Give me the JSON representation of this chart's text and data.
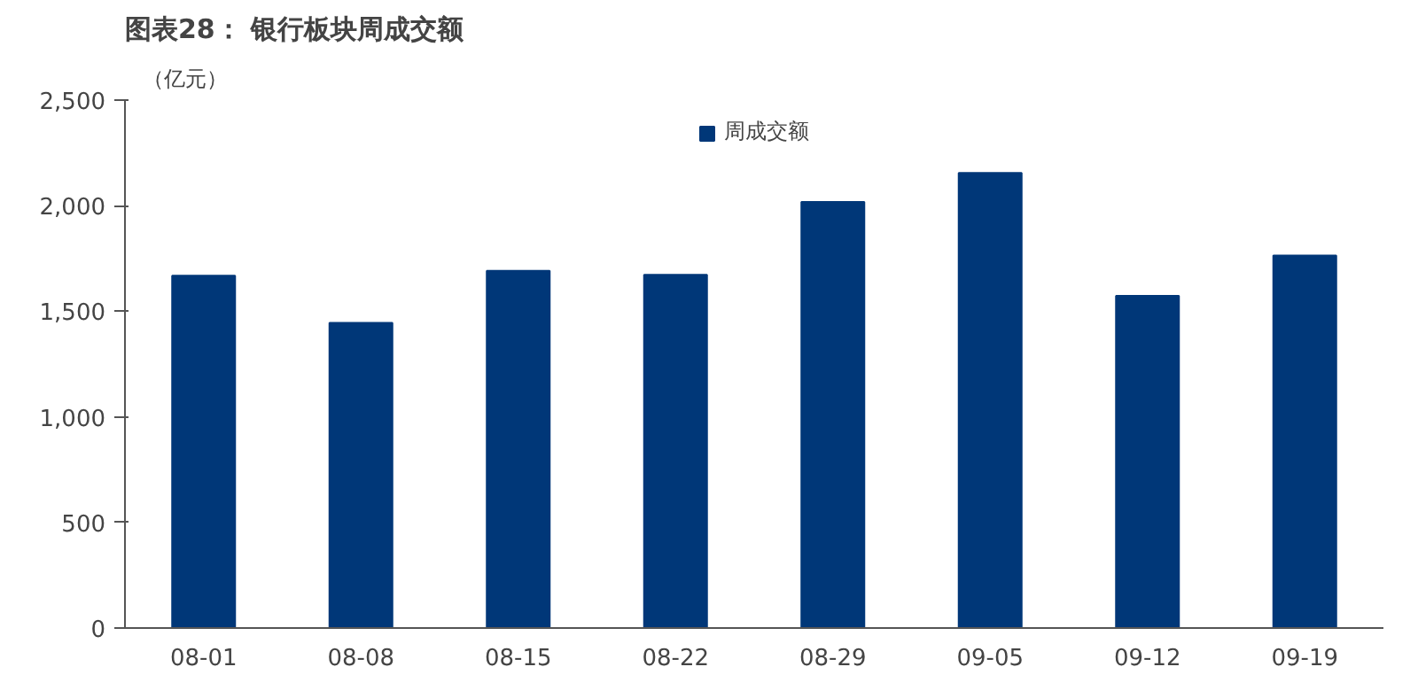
{
  "chart_data": {
    "type": "bar",
    "title": "图表28： 银行板块周成交额",
    "ylabel": "（亿元）",
    "categories": [
      "08-01",
      "08-08",
      "08-15",
      "08-22",
      "08-29",
      "09-05",
      "09-12",
      "09-19"
    ],
    "series": [
      {
        "name": "周成交额",
        "color": "#003778",
        "values": [
          1668,
          1445,
          1691,
          1673,
          2018,
          2155,
          1573,
          1764
        ]
      }
    ],
    "ylim": [
      0,
      2500
    ],
    "yticks": [
      0,
      {
        "value": 500,
        "label": "500"
      },
      {
        "value": 1000,
        "label": "1,000"
      },
      {
        "value": 1500,
        "label": "1,500"
      },
      {
        "value": 2000,
        "label": "2,000"
      },
      {
        "value": 2500,
        "label": "2,500"
      }
    ],
    "grid": false,
    "legend": "top"
  }
}
